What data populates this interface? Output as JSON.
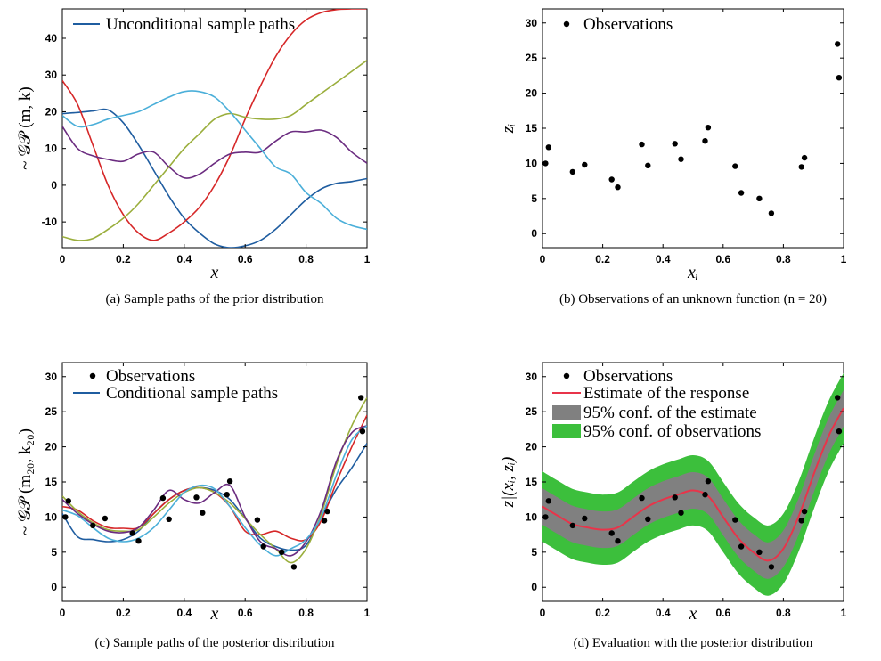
{
  "chart_data": [
    {
      "type": "line",
      "id": "a",
      "caption": "(a) Sample paths of the prior distribution",
      "xlabel": "x",
      "ylabel": "~ 𝒢𝒫 (m, k)",
      "xlim": [
        0,
        1
      ],
      "ylim": [
        -17,
        48
      ],
      "xticks": [
        "0",
        "0.2",
        "0.4",
        "0.6",
        "0.8",
        "1"
      ],
      "yticks": [
        "-10",
        "0",
        "10",
        "20",
        "30",
        "40"
      ],
      "ytick_values": [
        -10,
        0,
        10,
        20,
        30,
        40
      ],
      "legend": [
        "Unconditional sample paths"
      ],
      "x": [
        0,
        0.05,
        0.1,
        0.15,
        0.2,
        0.25,
        0.3,
        0.35,
        0.4,
        0.45,
        0.5,
        0.55,
        0.6,
        0.65,
        0.7,
        0.75,
        0.8,
        0.85,
        0.9,
        0.95,
        1
      ],
      "series": [
        {
          "color": "#1f5da0",
          "values": [
            19.5,
            19.8,
            20.2,
            20.5,
            17,
            11,
            4,
            -3,
            -9,
            -13,
            -16,
            -17,
            -16.5,
            -15,
            -12,
            -8,
            -4,
            -1,
            0.5,
            1,
            1.8
          ]
        },
        {
          "color": "#d62728",
          "values": [
            28.5,
            22,
            11,
            0,
            -8,
            -13,
            -15,
            -13,
            -10,
            -6,
            0,
            8,
            18,
            27,
            35,
            41,
            45,
            47,
            47.8,
            48,
            48
          ]
        },
        {
          "color": "#9aae3c",
          "values": [
            -14,
            -15,
            -14.5,
            -12,
            -9,
            -5,
            0,
            5,
            10,
            14,
            18,
            19.5,
            18.5,
            18,
            18,
            19,
            22,
            25,
            28,
            31,
            34
          ]
        },
        {
          "color": "#6b2c80",
          "values": [
            16,
            10,
            8,
            7,
            6.5,
            8.5,
            9,
            5,
            2,
            3,
            6,
            8.5,
            9,
            9,
            12,
            14.5,
            14.5,
            15,
            13,
            9,
            6
          ]
        },
        {
          "color": "#4bafd9",
          "values": [
            19,
            16,
            16.5,
            18,
            19,
            20,
            22,
            24,
            25.5,
            25.5,
            24,
            20,
            15,
            10,
            5,
            3,
            -2,
            -5,
            -9,
            -11,
            -12
          ]
        }
      ]
    },
    {
      "type": "scatter",
      "id": "b",
      "caption": "(b) Observations of an unknown function (n = 20)",
      "xlabel": "xᵢ",
      "ylabel": "zᵢ",
      "xlim": [
        0,
        1
      ],
      "ylim": [
        -2,
        32
      ],
      "xticks": [
        "0",
        "0.2",
        "0.4",
        "0.6",
        "0.8",
        "1"
      ],
      "yticks": [
        "0",
        "5",
        "10",
        "15",
        "20",
        "25",
        "30"
      ],
      "ytick_values": [
        0,
        5,
        10,
        15,
        20,
        25,
        30
      ],
      "legend": [
        "Observations"
      ],
      "points": [
        [
          0.01,
          10
        ],
        [
          0.02,
          12.3
        ],
        [
          0.1,
          8.8
        ],
        [
          0.14,
          9.8
        ],
        [
          0.23,
          7.7
        ],
        [
          0.25,
          6.6
        ],
        [
          0.33,
          12.7
        ],
        [
          0.35,
          9.7
        ],
        [
          0.44,
          12.8
        ],
        [
          0.46,
          10.6
        ],
        [
          0.54,
          13.2
        ],
        [
          0.55,
          15.1
        ],
        [
          0.64,
          9.6
        ],
        [
          0.66,
          5.8
        ],
        [
          0.72,
          5.0
        ],
        [
          0.76,
          2.9
        ],
        [
          0.86,
          9.5
        ],
        [
          0.87,
          10.8
        ],
        [
          0.98,
          27.0
        ],
        [
          0.985,
          22.2
        ]
      ]
    },
    {
      "type": "line",
      "id": "c",
      "caption": "(c) Sample paths of the posterior distribution",
      "xlabel": "x",
      "ylabel": "~ 𝒢𝒫 (m₂₀, k₂₀)",
      "xlim": [
        0,
        1
      ],
      "ylim": [
        -2,
        32
      ],
      "xticks": [
        "0",
        "0.2",
        "0.4",
        "0.6",
        "0.8",
        "1"
      ],
      "yticks": [
        "0",
        "5",
        "10",
        "15",
        "20",
        "25",
        "30"
      ],
      "ytick_values": [
        0,
        5,
        10,
        15,
        20,
        25,
        30
      ],
      "legend": [
        "Observations",
        "Conditional sample paths"
      ],
      "x": [
        0,
        0.05,
        0.1,
        0.15,
        0.2,
        0.25,
        0.3,
        0.35,
        0.4,
        0.45,
        0.5,
        0.55,
        0.6,
        0.65,
        0.7,
        0.75,
        0.8,
        0.85,
        0.9,
        0.95,
        1
      ],
      "series": [
        {
          "color": "#1f5da0",
          "values": [
            10.5,
            7.2,
            6.8,
            6.5,
            6.8,
            8.0,
            10.5,
            12.5,
            13.8,
            14.2,
            13.8,
            12.5,
            9.8,
            7.0,
            5.8,
            5.3,
            6.0,
            10.0,
            14.0,
            17.0,
            20.5
          ]
        },
        {
          "color": "#d62728",
          "values": [
            11.5,
            11.0,
            9.5,
            8.5,
            8.4,
            8.5,
            10.5,
            12.5,
            13.8,
            14.2,
            13.5,
            11.5,
            8.0,
            7.5,
            8.0,
            7.0,
            6.8,
            9.5,
            15.0,
            20.0,
            24.5
          ]
        },
        {
          "color": "#9aae3c",
          "values": [
            13.0,
            10.8,
            9.2,
            8.2,
            8.0,
            8.2,
            10.0,
            12.0,
            13.5,
            14.2,
            13.5,
            12.0,
            9.8,
            7.5,
            5.5,
            3.5,
            5.5,
            10.5,
            17.5,
            23.0,
            27.0
          ]
        },
        {
          "color": "#6b2c80",
          "values": [
            12.5,
            10.5,
            9.0,
            8.0,
            7.8,
            8.5,
            11.0,
            13.8,
            12.5,
            12.0,
            13.5,
            14.5,
            10.0,
            6.5,
            5.5,
            4.5,
            6.5,
            11.0,
            18.0,
            22.0,
            23.0
          ]
        },
        {
          "color": "#4bafd9",
          "values": [
            11.0,
            10.2,
            8.5,
            7.0,
            6.5,
            7.0,
            8.5,
            11.0,
            13.5,
            14.5,
            14.0,
            11.5,
            8.5,
            6.0,
            4.5,
            5.5,
            6.8,
            10.0,
            16.0,
            21.0,
            23.0
          ]
        }
      ],
      "points": [
        [
          0.01,
          10
        ],
        [
          0.02,
          12.3
        ],
        [
          0.1,
          8.8
        ],
        [
          0.14,
          9.8
        ],
        [
          0.23,
          7.7
        ],
        [
          0.25,
          6.6
        ],
        [
          0.33,
          12.7
        ],
        [
          0.35,
          9.7
        ],
        [
          0.44,
          12.8
        ],
        [
          0.46,
          10.6
        ],
        [
          0.54,
          13.2
        ],
        [
          0.55,
          15.1
        ],
        [
          0.64,
          9.6
        ],
        [
          0.66,
          5.8
        ],
        [
          0.72,
          5.0
        ],
        [
          0.76,
          2.9
        ],
        [
          0.86,
          9.5
        ],
        [
          0.87,
          10.8
        ],
        [
          0.98,
          27.0
        ],
        [
          0.985,
          22.2
        ]
      ]
    },
    {
      "type": "area",
      "id": "d",
      "caption": "(d) Evaluation with the posterior distribution",
      "xlabel": "x",
      "ylabel": "z|(xᵢ, zᵢ)",
      "xlim": [
        0,
        1
      ],
      "ylim": [
        -2,
        32
      ],
      "xticks": [
        "0",
        "0.2",
        "0.4",
        "0.6",
        "0.8",
        "1"
      ],
      "yticks": [
        "0",
        "5",
        "10",
        "15",
        "20",
        "25",
        "30"
      ],
      "ytick_values": [
        0,
        5,
        10,
        15,
        20,
        25,
        30
      ],
      "legend": [
        "Observations",
        "Estimate of the response",
        "95% conf. of the estimate",
        "95% conf. of observations"
      ],
      "x": [
        0,
        0.05,
        0.1,
        0.15,
        0.2,
        0.25,
        0.3,
        0.35,
        0.4,
        0.45,
        0.5,
        0.55,
        0.6,
        0.65,
        0.7,
        0.75,
        0.8,
        0.85,
        0.9,
        0.95,
        1
      ],
      "estimate": [
        11.5,
        10.2,
        9.0,
        8.5,
        8.2,
        8.5,
        10.0,
        11.5,
        12.5,
        13.2,
        13.8,
        13.0,
        10.0,
        7.0,
        5.0,
        3.8,
        5.5,
        10.0,
        16.0,
        21.5,
        25.5
      ],
      "conf_estimate_half_width": 2.6,
      "conf_observations_half_width": 5.0,
      "band_colors": {
        "estimate": "#808080",
        "observations": "#3cbf3c",
        "line": "#e8344a"
      },
      "points": [
        [
          0.01,
          10
        ],
        [
          0.02,
          12.3
        ],
        [
          0.1,
          8.8
        ],
        [
          0.14,
          9.8
        ],
        [
          0.23,
          7.7
        ],
        [
          0.25,
          6.6
        ],
        [
          0.33,
          12.7
        ],
        [
          0.35,
          9.7
        ],
        [
          0.44,
          12.8
        ],
        [
          0.46,
          10.6
        ],
        [
          0.54,
          13.2
        ],
        [
          0.55,
          15.1
        ],
        [
          0.64,
          9.6
        ],
        [
          0.66,
          5.8
        ],
        [
          0.72,
          5.0
        ],
        [
          0.76,
          2.9
        ],
        [
          0.86,
          9.5
        ],
        [
          0.87,
          10.8
        ],
        [
          0.98,
          27.0
        ],
        [
          0.985,
          22.2
        ]
      ]
    }
  ]
}
